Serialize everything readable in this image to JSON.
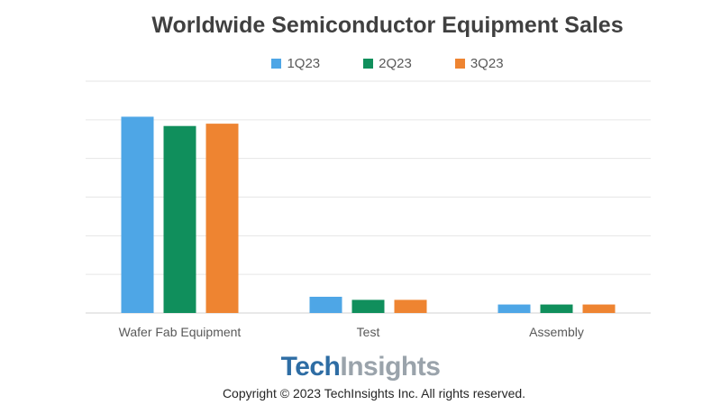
{
  "chart_data": {
    "type": "bar",
    "title": "Worldwide Semiconductor Equipment Sales",
    "categories": [
      "Wafer Fab Equipment",
      "Test",
      "Assembly"
    ],
    "series": [
      {
        "name": "1Q23",
        "color": "#4ea6e6",
        "values": [
          25.4,
          2.1,
          1.1
        ]
      },
      {
        "name": "2Q23",
        "color": "#108f5c",
        "values": [
          24.2,
          1.7,
          1.1
        ]
      },
      {
        "name": "3Q23",
        "color": "#ee8431",
        "values": [
          24.5,
          1.7,
          1.1
        ]
      }
    ],
    "ylim": [
      0,
      30
    ],
    "y_gridlines": [
      0,
      5,
      10,
      15,
      20,
      25,
      30
    ],
    "y_tick_labels_shown": false,
    "grid": true,
    "legend_position": "top-center"
  },
  "brand": {
    "part1": "Tech",
    "part2": "Insights"
  },
  "copyright": "Copyright © 2023 TechInsights Inc.  All rights reserved."
}
